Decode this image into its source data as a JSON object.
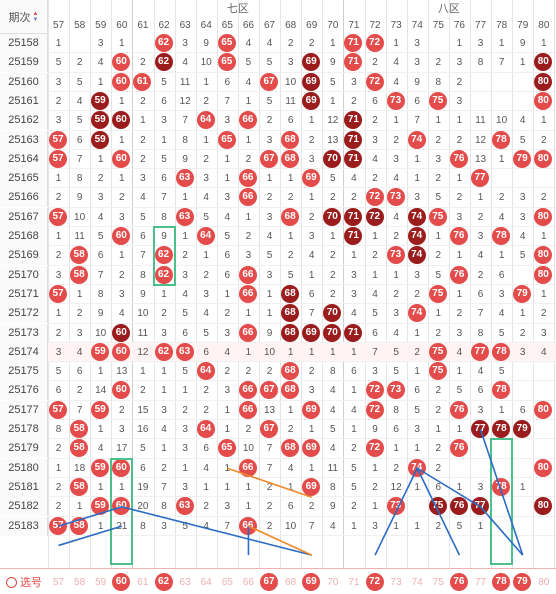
{
  "header": {
    "period_label": "期次",
    "zones": [
      "七区",
      "八区"
    ],
    "columns": [
      "57",
      "58",
      "59",
      "60",
      "61",
      "62",
      "63",
      "64",
      "65",
      "66",
      "67",
      "68",
      "69",
      "70",
      "71",
      "72",
      "73",
      "74",
      "75",
      "76",
      "77",
      "78",
      "79",
      "80"
    ]
  },
  "rows": [
    {
      "period": "25158",
      "cells": [
        "1",
        "",
        "3",
        "1",
        "",
        "62",
        "3",
        "9",
        "65",
        "4",
        "4",
        "2",
        "2",
        "1",
        "71",
        "72",
        "1",
        "3",
        "",
        "1",
        "3",
        "1",
        "9",
        "1"
      ],
      "balls": {
        "62": "red",
        "65": "red",
        "71": "red",
        "72": "red"
      }
    },
    {
      "period": "25159",
      "cells": [
        "5",
        "2",
        "4",
        "60",
        "2",
        "62",
        "4",
        "10",
        "65",
        "5",
        "5",
        "3",
        "69",
        "9",
        "71",
        "2",
        "4",
        "3",
        "2",
        "3",
        "8",
        "7",
        "1",
        "80"
      ],
      "balls": {
        "60": "red",
        "62": "dark",
        "65": "red",
        "69": "dark",
        "71": "red",
        "80": "dark"
      }
    },
    {
      "period": "25160",
      "cells": [
        "3",
        "5",
        "60",
        "61",
        "1",
        "5",
        "11",
        "1",
        "6",
        "67",
        "4",
        "69",
        "10",
        "72",
        "5",
        "3",
        "4",
        "9",
        "8",
        "2",
        "80"
      ],
      "balls": {
        "60": "red",
        "61": "red",
        "67": "red",
        "69": "dark",
        "72": "red",
        "80": "dark"
      }
    },
    {
      "period": "25161",
      "cells": [
        "2",
        "4",
        "59",
        "1",
        "2",
        "6",
        "12",
        "2",
        "7",
        "1",
        "5",
        "69",
        "11",
        "1",
        "2",
        "73",
        "6",
        "75",
        "6",
        "3",
        "80"
      ],
      "balls": {
        "59": "dark",
        "69": "dark",
        "73": "red",
        "75": "red",
        "80": "red"
      }
    },
    {
      "period": "25162",
      "cells": [
        "3",
        "5",
        "59",
        "60",
        "1",
        "3",
        "7",
        "64",
        "3",
        "66",
        "2",
        "6",
        "1",
        "12",
        "71",
        "2",
        "1",
        "7",
        "1",
        "1",
        "11",
        "10",
        "4",
        "1"
      ],
      "balls": {
        "59": "dark",
        "60": "dark",
        "64": "red",
        "66": "red",
        "71": "dark"
      }
    },
    {
      "period": "25163",
      "cells": [
        "57",
        "6",
        "59",
        "1",
        "2",
        "1",
        "8",
        "1",
        "65",
        "1",
        "3",
        "68",
        "2",
        "13",
        "71",
        "3",
        "2",
        "74",
        "2",
        "2",
        "12",
        "78",
        "5",
        "2"
      ],
      "balls": {
        "57": "red",
        "59": "dark",
        "65": "red",
        "68": "red",
        "71": "dark",
        "74": "red",
        "78": "red"
      }
    },
    {
      "period": "25164",
      "cells": [
        "57",
        "7",
        "1",
        "60",
        "2",
        "5",
        "9",
        "2",
        "1",
        "2",
        "67",
        "68",
        "3",
        "70",
        "71",
        "4",
        "3",
        "1",
        "3",
        "76",
        "13",
        "1",
        "79",
        "80"
      ],
      "balls": {
        "57": "red",
        "60": "red",
        "67": "red",
        "68": "red",
        "70": "dark",
        "71": "dark",
        "76": "red",
        "79": "red",
        "80": "red"
      }
    },
    {
      "period": "25165",
      "cells": [
        "1",
        "8",
        "2",
        "1",
        "3",
        "6",
        "63",
        "3",
        "66",
        "1",
        "69",
        "1",
        "1",
        "5",
        "4",
        "2",
        "4",
        "1",
        "77",
        "2",
        "1"
      ],
      "balls": {
        "63": "red",
        "66": "red",
        "69": "red",
        "77": "red"
      }
    },
    {
      "period": "25166",
      "cells": [
        "2",
        "9",
        "3",
        "2",
        "4",
        "7",
        "1",
        "4",
        "3",
        "66",
        "2",
        "2",
        "1",
        "2",
        "2",
        "72",
        "73",
        "3",
        "5",
        "2",
        "1",
        "2",
        "3",
        "2"
      ],
      "balls": {
        "66": "red",
        "72": "red",
        "73": "red"
      }
    },
    {
      "period": "25167",
      "cells": [
        "57",
        "10",
        "4",
        "3",
        "5",
        "8",
        "63",
        "5",
        "4",
        "1",
        "3",
        "68",
        "2",
        "70",
        "71",
        "72",
        "4",
        "74",
        "75",
        "3",
        "2",
        "4",
        "3",
        "80"
      ],
      "balls": {
        "57": "red",
        "63": "red",
        "68": "red",
        "70": "dark",
        "71": "dark",
        "72": "dark",
        "74": "dark",
        "75": "red",
        "80": "red"
      }
    },
    {
      "period": "25168",
      "cells": [
        "1",
        "11",
        "5",
        "60",
        "6",
        "9",
        "1",
        "64",
        "5",
        "2",
        "4",
        "1",
        "3",
        "1",
        "71",
        "1",
        "2",
        "74",
        "1",
        "76",
        "3",
        "78",
        "4",
        "1"
      ],
      "balls": {
        "60": "red",
        "64": "red",
        "71": "dark",
        "74": "dark",
        "76": "red",
        "78": "red"
      }
    },
    {
      "period": "25169",
      "cells": [
        "2",
        "58",
        "6",
        "1",
        "7",
        "62",
        "2",
        "1",
        "6",
        "3",
        "5",
        "2",
        "4",
        "2",
        "1",
        "2",
        "73",
        "74",
        "2",
        "1",
        "4",
        "1",
        "5",
        "80"
      ],
      "balls": {
        "58": "red",
        "62": "red",
        "73": "red",
        "74": "dark",
        "80": "red"
      }
    },
    {
      "period": "25170",
      "cells": [
        "3",
        "58",
        "7",
        "2",
        "8",
        "62",
        "3",
        "2",
        "66",
        "66",
        "6",
        "3",
        "5",
        "1",
        "2",
        "3",
        "1",
        "1",
        "3",
        "76",
        "5",
        "2",
        "6",
        "80"
      ],
      "balls": {
        "58": "red",
        "62": "red",
        "66": "red",
        "76": "red",
        "80": "red"
      }
    },
    {
      "period": "25171",
      "cells": [
        "57",
        "1",
        "8",
        "3",
        "9",
        "1",
        "4",
        "3",
        "1",
        "66",
        "1",
        "68",
        "6",
        "2",
        "3",
        "4",
        "2",
        "2",
        "75",
        "1",
        "6",
        "3",
        "79",
        "1"
      ],
      "balls": {
        "57": "red",
        "66": "red",
        "68": "dark",
        "75": "red",
        "79": "red"
      }
    },
    {
      "period": "25172",
      "cells": [
        "1",
        "2",
        "9",
        "4",
        "10",
        "2",
        "5",
        "4",
        "2",
        "1",
        "1",
        "68",
        "7",
        "70",
        "4",
        "5",
        "3",
        "74",
        "1",
        "2",
        "7",
        "4",
        "1",
        "2"
      ],
      "balls": {
        "68": "dark",
        "70": "dark",
        "74": "red"
      }
    },
    {
      "period": "25173",
      "cells": [
        "2",
        "3",
        "10",
        "60",
        "11",
        "3",
        "6",
        "5",
        "3",
        "66",
        "9",
        "68",
        "69",
        "70",
        "71",
        "6",
        "4",
        "1",
        "2",
        "3",
        "8",
        "5",
        "2",
        "3"
      ],
      "balls": {
        "60": "dark",
        "66": "red",
        "68": "dark",
        "69": "dark",
        "70": "dark",
        "71": "dark"
      }
    },
    {
      "period": "25174",
      "cells": [
        "3",
        "4",
        "59",
        "60",
        "12",
        "62",
        "63",
        "6",
        "4",
        "1",
        "10",
        "1",
        "1",
        "1",
        "1",
        "7",
        "5",
        "2",
        "75",
        "4",
        "77",
        "78",
        "3",
        "4"
      ],
      "balls": {
        "59": "red",
        "60": "red",
        "62": "red",
        "63": "red",
        "75": "red",
        "77": "red",
        "78": "red"
      },
      "shade": true
    },
    {
      "period": "25175",
      "cells": [
        "5",
        "6",
        "1",
        "13",
        "1",
        "1",
        "64",
        "5",
        "2",
        "68",
        "2",
        "2",
        "2",
        "8",
        "6",
        "3",
        "75",
        "5",
        "1",
        "1",
        "4",
        "5"
      ],
      "balls": {
        "64": "red",
        "68": "red",
        "75": "red"
      }
    },
    {
      "period": "25176",
      "cells": [
        "6",
        "2",
        "60",
        "14",
        "2",
        "1",
        "1",
        "66",
        "67",
        "68",
        "2",
        "3",
        "3",
        "72",
        "73",
        "4",
        "1",
        "6",
        "2",
        "78",
        "5",
        "6"
      ],
      "balls": {
        "60": "red",
        "66": "red",
        "67": "red",
        "68": "red",
        "72": "red",
        "73": "red",
        "78": "red"
      }
    },
    {
      "period": "25177",
      "cells": [
        "57",
        "7",
        "59",
        "2",
        "15",
        "3",
        "2",
        "2",
        "66",
        "1",
        "13",
        "1",
        "69",
        "4",
        "4",
        "72",
        "8",
        "5",
        "2",
        "76",
        "3",
        "1",
        "6",
        "80"
      ],
      "balls": {
        "57": "red",
        "59": "red",
        "66": "red",
        "69": "red",
        "72": "red",
        "76": "red",
        "80": "red"
      }
    },
    {
      "period": "25178",
      "cells": [
        "58",
        "8",
        "1",
        "3",
        "16",
        "4",
        "3",
        "64",
        "1",
        "2",
        "67",
        "2",
        "1",
        "5",
        "1",
        "9",
        "6",
        "3",
        "1",
        "77",
        "78",
        "79",
        "1"
      ],
      "balls": {
        "58": "red",
        "64": "red",
        "67": "red",
        "77": "dark",
        "78": "dark",
        "79": "dark"
      }
    },
    {
      "period": "25179",
      "cells": [
        "58",
        "2",
        "4",
        "17",
        "5",
        "1",
        "65",
        "3",
        "68",
        "69",
        "6",
        "72",
        "10",
        "7",
        "4",
        "76",
        "2",
        "1",
        "1",
        "2"
      ],
      "balls": {
        "58": "red",
        "65": "red",
        "68": "red",
        "69": "red",
        "72": "red",
        "76": "red"
      }
    },
    {
      "period": "25180",
      "cells": [
        "1",
        "59",
        "60",
        "18",
        "6",
        "2",
        "66",
        "1",
        "4",
        "1",
        "7",
        "4",
        "1",
        "11",
        "74",
        "5",
        "1",
        "2",
        "2",
        "80"
      ],
      "balls": {
        "59": "red",
        "60": "red",
        "66": "red",
        "74": "red",
        "80": "red"
      }
    },
    {
      "period": "25181",
      "cells": [
        "58",
        "2",
        "1",
        "1",
        "19",
        "7",
        "3",
        "1",
        "1",
        "1",
        "2",
        "1",
        "69",
        "8",
        "5",
        "2",
        "12",
        "1",
        "6",
        "1",
        "78",
        "3",
        "1"
      ],
      "balls": {
        "58": "red",
        "69": "red",
        "78": "red"
      }
    },
    {
      "period": "25182",
      "cells": [
        "2",
        "1",
        "59",
        "60",
        "20",
        "8",
        "63",
        "2",
        "3",
        "1",
        "2",
        "6",
        "2",
        "9",
        "73",
        "2",
        "75",
        "76",
        "77",
        "1",
        "80"
      ],
      "balls": {
        "59": "red",
        "60": "red",
        "63": "red",
        "73": "red",
        "75": "dark",
        "76": "dark",
        "77": "dark",
        "80": "dark"
      }
    },
    {
      "period": "25183",
      "cells": [
        "57",
        "58",
        "1",
        "21",
        "8",
        "3",
        "5",
        "66",
        "4",
        "7",
        "2",
        "10",
        "7",
        "4",
        "1",
        "3",
        "1",
        "1",
        "2",
        "5",
        "1"
      ],
      "balls": {
        "57": "red",
        "58": "red",
        "66": "red"
      }
    }
  ],
  "footer": {
    "label": "选号",
    "cells": [
      "57",
      "58",
      "59",
      "60",
      "61",
      "62",
      "63",
      "64",
      "65",
      "66",
      "67",
      "68",
      "69",
      "70",
      "71",
      "72",
      "73",
      "74",
      "75",
      "76",
      "77",
      "78",
      "79",
      "80"
    ],
    "selected": [
      "60",
      "62",
      "67",
      "69",
      "72",
      "76",
      "78",
      "79"
    ]
  }
}
